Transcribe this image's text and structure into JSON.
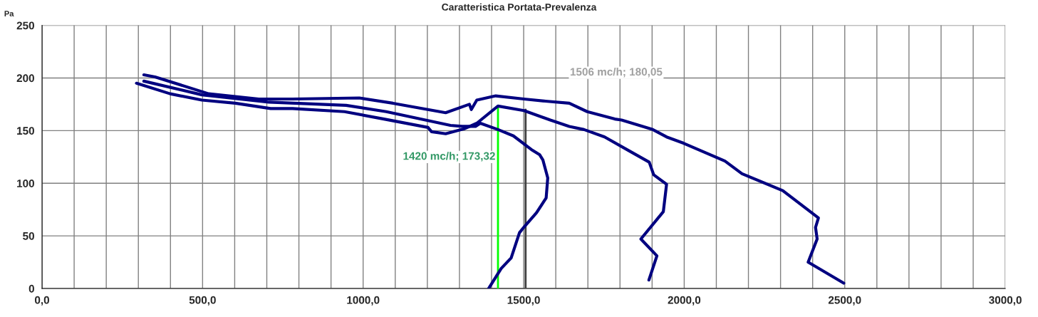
{
  "chart_data": {
    "type": "line",
    "title": "Caratteristica Portata-Prevalenza",
    "ylabel": "Pa",
    "xlim": [
      0,
      3000
    ],
    "ylim": [
      0,
      250
    ],
    "xticks": [
      {
        "value": 0,
        "label": "0,0"
      },
      {
        "value": 100,
        "label": null
      },
      {
        "value": 200,
        "label": null
      },
      {
        "value": 300,
        "label": null
      },
      {
        "value": 400,
        "label": null
      },
      {
        "value": 500,
        "label": "500,0"
      },
      {
        "value": 600,
        "label": null
      },
      {
        "value": 700,
        "label": null
      },
      {
        "value": 800,
        "label": null
      },
      {
        "value": 900,
        "label": null
      },
      {
        "value": 1000,
        "label": "1000,0"
      },
      {
        "value": 1100,
        "label": null
      },
      {
        "value": 1200,
        "label": null
      },
      {
        "value": 1300,
        "label": null
      },
      {
        "value": 1400,
        "label": null
      },
      {
        "value": 1500,
        "label": "1500,0"
      },
      {
        "value": 1600,
        "label": null
      },
      {
        "value": 1700,
        "label": null
      },
      {
        "value": 1800,
        "label": null
      },
      {
        "value": 1900,
        "label": null
      },
      {
        "value": 2000,
        "label": "2000,0"
      },
      {
        "value": 2100,
        "label": null
      },
      {
        "value": 2200,
        "label": null
      },
      {
        "value": 2300,
        "label": null
      },
      {
        "value": 2400,
        "label": null
      },
      {
        "value": 2500,
        "label": "2500,0"
      },
      {
        "value": 2600,
        "label": null
      },
      {
        "value": 2700,
        "label": null
      },
      {
        "value": 2800,
        "label": null
      },
      {
        "value": 2900,
        "label": null
      },
      {
        "value": 3000,
        "label": "3000,0"
      }
    ],
    "yticks": [
      0,
      50,
      100,
      150,
      200,
      250
    ],
    "grid": true,
    "marker": "none",
    "line_style": "solid",
    "series": [
      {
        "color": "#000080",
        "x": [
          317,
          352,
          519,
          675,
          780,
          988,
          1093,
          1257,
          1331,
          1337,
          1354,
          1413,
          1501,
          1568,
          1642,
          1698,
          1784,
          1805,
          1902,
          1945,
          1998,
          2127,
          2180,
          2307,
          2418,
          2409,
          2414,
          2386,
          2497
        ],
        "values": [
          203,
          201,
          185,
          180,
          180,
          181,
          176,
          167,
          175,
          170,
          179,
          183,
          180,
          178,
          176,
          168,
          161,
          160,
          151,
          144,
          138,
          121,
          109,
          93,
          67,
          58,
          47,
          25,
          5
        ]
      },
      {
        "color": "#000080",
        "x": [
          317,
          498,
          707,
          947,
          1072,
          1272,
          1309,
          1350,
          1365,
          1420,
          1468,
          1524,
          1550,
          1560,
          1575,
          1570,
          1540,
          1500,
          1487,
          1461,
          1430,
          1391
        ],
        "values": [
          197,
          184,
          177,
          174,
          168,
          155,
          154,
          154,
          157,
          151,
          145,
          132,
          127,
          122,
          105,
          86,
          72,
          58,
          53,
          29,
          19,
          0
        ]
      },
      {
        "color": "#000080",
        "x": [
          294,
          399,
          498,
          602,
          712,
          780,
          942,
          1065,
          1202,
          1213,
          1257,
          1317,
          1354,
          1420,
          1501,
          1583,
          1642,
          1688,
          1752,
          1827,
          1891,
          1905,
          1945,
          1935,
          1865,
          1915,
          1890
        ],
        "values": [
          195,
          185,
          179,
          176,
          171,
          171,
          168,
          161,
          153,
          149,
          147,
          152,
          157,
          173.32,
          169,
          160,
          154,
          151,
          144,
          131,
          120,
          108,
          99,
          73,
          47,
          31,
          8
        ]
      },
      {
        "color": "#00ff00",
        "x": [
          1420,
          1420
        ],
        "values": [
          0,
          173.32
        ]
      },
      {
        "color": "#404040",
        "x": [
          1506,
          1506
        ],
        "values": [
          0,
          170
        ]
      }
    ],
    "annotations": [
      "1506 mc/h; 180,05",
      "1420 mc/h; 173,32"
    ]
  }
}
